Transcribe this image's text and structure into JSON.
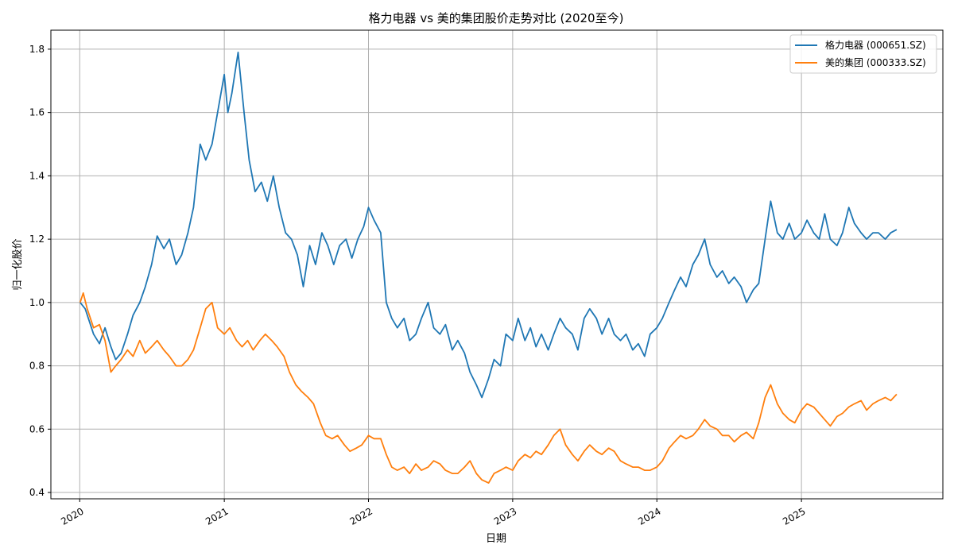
{
  "chart_data": {
    "type": "line",
    "title": "格力电器 vs 美的集团股价走势对比 (2020至今)",
    "xlabel": "日期",
    "ylabel": "归一化股价",
    "xlim": [
      "2019-10-20",
      "2025-12-25"
    ],
    "ylim": [
      0.38,
      1.86
    ],
    "x_ticks": [
      "2020",
      "2021",
      "2022",
      "2023",
      "2024",
      "2025"
    ],
    "y_ticks": [
      0.4,
      0.6,
      0.8,
      1.0,
      1.2,
      1.4,
      1.6,
      1.8
    ],
    "grid": true,
    "legend_position": "top-right",
    "series": [
      {
        "name": "格力电器 (000651.SZ)",
        "color": "#1f77b4",
        "points": [
          [
            "2020-01-02",
            1.0
          ],
          [
            "2020-01-15",
            0.98
          ],
          [
            "2020-02-05",
            0.9
          ],
          [
            "2020-02-20",
            0.87
          ],
          [
            "2020-03-05",
            0.92
          ],
          [
            "2020-03-20",
            0.86
          ],
          [
            "2020-04-01",
            0.82
          ],
          [
            "2020-04-15",
            0.84
          ],
          [
            "2020-05-01",
            0.9
          ],
          [
            "2020-05-15",
            0.96
          ],
          [
            "2020-06-01",
            1.0
          ],
          [
            "2020-06-15",
            1.05
          ],
          [
            "2020-07-01",
            1.12
          ],
          [
            "2020-07-15",
            1.21
          ],
          [
            "2020-08-01",
            1.17
          ],
          [
            "2020-08-15",
            1.2
          ],
          [
            "2020-09-01",
            1.12
          ],
          [
            "2020-09-15",
            1.15
          ],
          [
            "2020-10-01",
            1.22
          ],
          [
            "2020-10-15",
            1.3
          ],
          [
            "2020-11-01",
            1.5
          ],
          [
            "2020-11-15",
            1.45
          ],
          [
            "2020-12-01",
            1.5
          ],
          [
            "2020-12-15",
            1.6
          ],
          [
            "2021-01-01",
            1.72
          ],
          [
            "2021-01-10",
            1.6
          ],
          [
            "2021-01-20",
            1.66
          ],
          [
            "2021-02-05",
            1.79
          ],
          [
            "2021-02-20",
            1.6
          ],
          [
            "2021-03-05",
            1.45
          ],
          [
            "2021-03-20",
            1.35
          ],
          [
            "2021-04-05",
            1.38
          ],
          [
            "2021-04-20",
            1.32
          ],
          [
            "2021-05-05",
            1.4
          ],
          [
            "2021-05-20",
            1.3
          ],
          [
            "2021-06-05",
            1.22
          ],
          [
            "2021-06-20",
            1.2
          ],
          [
            "2021-07-05",
            1.15
          ],
          [
            "2021-07-20",
            1.05
          ],
          [
            "2021-08-05",
            1.18
          ],
          [
            "2021-08-20",
            1.12
          ],
          [
            "2021-09-05",
            1.22
          ],
          [
            "2021-09-20",
            1.18
          ],
          [
            "2021-10-05",
            1.12
          ],
          [
            "2021-10-20",
            1.18
          ],
          [
            "2021-11-05",
            1.2
          ],
          [
            "2021-11-20",
            1.14
          ],
          [
            "2021-12-05",
            1.2
          ],
          [
            "2021-12-20",
            1.24
          ],
          [
            "2022-01-01",
            1.3
          ],
          [
            "2022-01-15",
            1.26
          ],
          [
            "2022-02-01",
            1.22
          ],
          [
            "2022-02-15",
            1.0
          ],
          [
            "2022-03-01",
            0.95
          ],
          [
            "2022-03-15",
            0.92
          ],
          [
            "2022-04-01",
            0.95
          ],
          [
            "2022-04-15",
            0.88
          ],
          [
            "2022-05-01",
            0.9
          ],
          [
            "2022-05-15",
            0.95
          ],
          [
            "2022-06-01",
            1.0
          ],
          [
            "2022-06-15",
            0.92
          ],
          [
            "2022-07-01",
            0.9
          ],
          [
            "2022-07-15",
            0.93
          ],
          [
            "2022-08-01",
            0.85
          ],
          [
            "2022-08-15",
            0.88
          ],
          [
            "2022-09-01",
            0.84
          ],
          [
            "2022-09-15",
            0.78
          ],
          [
            "2022-10-01",
            0.74
          ],
          [
            "2022-10-15",
            0.7
          ],
          [
            "2022-11-01",
            0.76
          ],
          [
            "2022-11-15",
            0.82
          ],
          [
            "2022-12-01",
            0.8
          ],
          [
            "2022-12-15",
            0.9
          ],
          [
            "2023-01-01",
            0.88
          ],
          [
            "2023-01-15",
            0.95
          ],
          [
            "2023-02-01",
            0.88
          ],
          [
            "2023-02-15",
            0.92
          ],
          [
            "2023-03-01",
            0.86
          ],
          [
            "2023-03-15",
            0.9
          ],
          [
            "2023-04-01",
            0.85
          ],
          [
            "2023-04-15",
            0.9
          ],
          [
            "2023-05-01",
            0.95
          ],
          [
            "2023-05-15",
            0.92
          ],
          [
            "2023-06-01",
            0.9
          ],
          [
            "2023-06-15",
            0.85
          ],
          [
            "2023-07-01",
            0.95
          ],
          [
            "2023-07-15",
            0.98
          ],
          [
            "2023-08-01",
            0.95
          ],
          [
            "2023-08-15",
            0.9
          ],
          [
            "2023-09-01",
            0.95
          ],
          [
            "2023-09-15",
            0.9
          ],
          [
            "2023-10-01",
            0.88
          ],
          [
            "2023-10-15",
            0.9
          ],
          [
            "2023-11-01",
            0.85
          ],
          [
            "2023-11-15",
            0.87
          ],
          [
            "2023-12-01",
            0.83
          ],
          [
            "2023-12-15",
            0.9
          ],
          [
            "2024-01-01",
            0.92
          ],
          [
            "2024-01-15",
            0.95
          ],
          [
            "2024-02-01",
            1.0
          ],
          [
            "2024-02-15",
            1.04
          ],
          [
            "2024-03-01",
            1.08
          ],
          [
            "2024-03-15",
            1.05
          ],
          [
            "2024-04-01",
            1.12
          ],
          [
            "2024-04-15",
            1.15
          ],
          [
            "2024-05-01",
            1.2
          ],
          [
            "2024-05-15",
            1.12
          ],
          [
            "2024-06-01",
            1.08
          ],
          [
            "2024-06-15",
            1.1
          ],
          [
            "2024-07-01",
            1.06
          ],
          [
            "2024-07-15",
            1.08
          ],
          [
            "2024-08-01",
            1.05
          ],
          [
            "2024-08-15",
            1.0
          ],
          [
            "2024-09-01",
            1.04
          ],
          [
            "2024-09-15",
            1.06
          ],
          [
            "2024-10-01",
            1.2
          ],
          [
            "2024-10-15",
            1.32
          ],
          [
            "2024-11-01",
            1.22
          ],
          [
            "2024-11-15",
            1.2
          ],
          [
            "2024-12-01",
            1.25
          ],
          [
            "2024-12-15",
            1.2
          ],
          [
            "2025-01-01",
            1.22
          ],
          [
            "2025-01-15",
            1.26
          ],
          [
            "2025-02-01",
            1.22
          ],
          [
            "2025-02-15",
            1.2
          ],
          [
            "2025-03-01",
            1.28
          ],
          [
            "2025-03-15",
            1.2
          ],
          [
            "2025-04-01",
            1.18
          ],
          [
            "2025-04-15",
            1.22
          ],
          [
            "2025-05-01",
            1.3
          ],
          [
            "2025-05-15",
            1.25
          ],
          [
            "2025-06-01",
            1.22
          ],
          [
            "2025-06-15",
            1.2
          ],
          [
            "2025-07-01",
            1.22
          ],
          [
            "2025-07-15",
            1.22
          ],
          [
            "2025-08-01",
            1.2
          ],
          [
            "2025-08-15",
            1.22
          ],
          [
            "2025-08-30",
            1.23
          ]
        ]
      },
      {
        "name": "美的集团 (000333.SZ)",
        "color": "#ff7f0e",
        "points": [
          [
            "2020-01-02",
            1.0
          ],
          [
            "2020-01-10",
            1.03
          ],
          [
            "2020-01-20",
            0.98
          ],
          [
            "2020-02-05",
            0.92
          ],
          [
            "2020-02-20",
            0.93
          ],
          [
            "2020-03-05",
            0.88
          ],
          [
            "2020-03-20",
            0.78
          ],
          [
            "2020-04-01",
            0.8
          ],
          [
            "2020-04-15",
            0.82
          ],
          [
            "2020-05-01",
            0.85
          ],
          [
            "2020-05-15",
            0.83
          ],
          [
            "2020-06-01",
            0.88
          ],
          [
            "2020-06-15",
            0.84
          ],
          [
            "2020-07-01",
            0.86
          ],
          [
            "2020-07-15",
            0.88
          ],
          [
            "2020-08-01",
            0.85
          ],
          [
            "2020-08-15",
            0.83
          ],
          [
            "2020-09-01",
            0.8
          ],
          [
            "2020-09-15",
            0.8
          ],
          [
            "2020-10-01",
            0.82
          ],
          [
            "2020-10-15",
            0.85
          ],
          [
            "2020-11-01",
            0.92
          ],
          [
            "2020-11-15",
            0.98
          ],
          [
            "2020-12-01",
            1.0
          ],
          [
            "2020-12-15",
            0.92
          ],
          [
            "2021-01-01",
            0.9
          ],
          [
            "2021-01-15",
            0.92
          ],
          [
            "2021-02-01",
            0.88
          ],
          [
            "2021-02-15",
            0.86
          ],
          [
            "2021-03-01",
            0.88
          ],
          [
            "2021-03-15",
            0.85
          ],
          [
            "2021-04-01",
            0.88
          ],
          [
            "2021-04-15",
            0.9
          ],
          [
            "2021-05-01",
            0.88
          ],
          [
            "2021-05-15",
            0.86
          ],
          [
            "2021-06-01",
            0.83
          ],
          [
            "2021-06-15",
            0.78
          ],
          [
            "2021-07-01",
            0.74
          ],
          [
            "2021-07-15",
            0.72
          ],
          [
            "2021-08-01",
            0.7
          ],
          [
            "2021-08-15",
            0.68
          ],
          [
            "2021-09-01",
            0.62
          ],
          [
            "2021-09-15",
            0.58
          ],
          [
            "2021-10-01",
            0.57
          ],
          [
            "2021-10-15",
            0.58
          ],
          [
            "2021-11-01",
            0.55
          ],
          [
            "2021-11-15",
            0.53
          ],
          [
            "2021-12-01",
            0.54
          ],
          [
            "2021-12-15",
            0.55
          ],
          [
            "2022-01-01",
            0.58
          ],
          [
            "2022-01-15",
            0.57
          ],
          [
            "2022-02-01",
            0.57
          ],
          [
            "2022-02-15",
            0.52
          ],
          [
            "2022-03-01",
            0.48
          ],
          [
            "2022-03-15",
            0.47
          ],
          [
            "2022-04-01",
            0.48
          ],
          [
            "2022-04-15",
            0.46
          ],
          [
            "2022-05-01",
            0.49
          ],
          [
            "2022-05-15",
            0.47
          ],
          [
            "2022-06-01",
            0.48
          ],
          [
            "2022-06-15",
            0.5
          ],
          [
            "2022-07-01",
            0.49
          ],
          [
            "2022-07-15",
            0.47
          ],
          [
            "2022-08-01",
            0.46
          ],
          [
            "2022-08-15",
            0.46
          ],
          [
            "2022-09-01",
            0.48
          ],
          [
            "2022-09-15",
            0.5
          ],
          [
            "2022-10-01",
            0.46
          ],
          [
            "2022-10-15",
            0.44
          ],
          [
            "2022-11-01",
            0.43
          ],
          [
            "2022-11-15",
            0.46
          ],
          [
            "2022-12-01",
            0.47
          ],
          [
            "2022-12-15",
            0.48
          ],
          [
            "2023-01-01",
            0.47
          ],
          [
            "2023-01-15",
            0.5
          ],
          [
            "2023-02-01",
            0.52
          ],
          [
            "2023-02-15",
            0.51
          ],
          [
            "2023-03-01",
            0.53
          ],
          [
            "2023-03-15",
            0.52
          ],
          [
            "2023-04-01",
            0.55
          ],
          [
            "2023-04-15",
            0.58
          ],
          [
            "2023-05-01",
            0.6
          ],
          [
            "2023-05-15",
            0.55
          ],
          [
            "2023-06-01",
            0.52
          ],
          [
            "2023-06-15",
            0.5
          ],
          [
            "2023-07-01",
            0.53
          ],
          [
            "2023-07-15",
            0.55
          ],
          [
            "2023-08-01",
            0.53
          ],
          [
            "2023-08-15",
            0.52
          ],
          [
            "2023-09-01",
            0.54
          ],
          [
            "2023-09-15",
            0.53
          ],
          [
            "2023-10-01",
            0.5
          ],
          [
            "2023-10-15",
            0.49
          ],
          [
            "2023-11-01",
            0.48
          ],
          [
            "2023-11-15",
            0.48
          ],
          [
            "2023-12-01",
            0.47
          ],
          [
            "2023-12-15",
            0.47
          ],
          [
            "2024-01-01",
            0.48
          ],
          [
            "2024-01-15",
            0.5
          ],
          [
            "2024-02-01",
            0.54
          ],
          [
            "2024-02-15",
            0.56
          ],
          [
            "2024-03-01",
            0.58
          ],
          [
            "2024-03-15",
            0.57
          ],
          [
            "2024-04-01",
            0.58
          ],
          [
            "2024-04-15",
            0.6
          ],
          [
            "2024-05-01",
            0.63
          ],
          [
            "2024-05-15",
            0.61
          ],
          [
            "2024-06-01",
            0.6
          ],
          [
            "2024-06-15",
            0.58
          ],
          [
            "2024-07-01",
            0.58
          ],
          [
            "2024-07-15",
            0.56
          ],
          [
            "2024-08-01",
            0.58
          ],
          [
            "2024-08-15",
            0.59
          ],
          [
            "2024-09-01",
            0.57
          ],
          [
            "2024-09-15",
            0.62
          ],
          [
            "2024-10-01",
            0.7
          ],
          [
            "2024-10-15",
            0.74
          ],
          [
            "2024-11-01",
            0.68
          ],
          [
            "2024-11-15",
            0.65
          ],
          [
            "2024-12-01",
            0.63
          ],
          [
            "2024-12-15",
            0.62
          ],
          [
            "2025-01-01",
            0.66
          ],
          [
            "2025-01-15",
            0.68
          ],
          [
            "2025-02-01",
            0.67
          ],
          [
            "2025-02-15",
            0.65
          ],
          [
            "2025-03-01",
            0.63
          ],
          [
            "2025-03-15",
            0.61
          ],
          [
            "2025-04-01",
            0.64
          ],
          [
            "2025-04-15",
            0.65
          ],
          [
            "2025-05-01",
            0.67
          ],
          [
            "2025-05-15",
            0.68
          ],
          [
            "2025-06-01",
            0.69
          ],
          [
            "2025-06-15",
            0.66
          ],
          [
            "2025-07-01",
            0.68
          ],
          [
            "2025-07-15",
            0.69
          ],
          [
            "2025-08-01",
            0.7
          ],
          [
            "2025-08-15",
            0.69
          ],
          [
            "2025-08-30",
            0.71
          ]
        ]
      }
    ]
  }
}
